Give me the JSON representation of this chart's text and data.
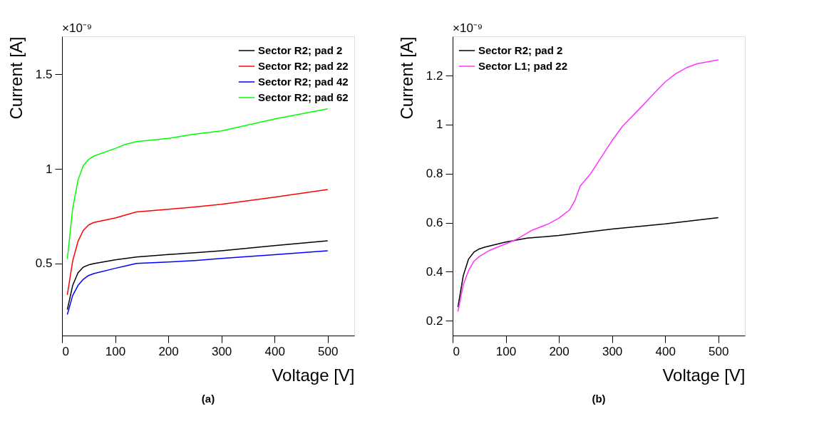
{
  "chart_data": [
    {
      "type": "line",
      "title": "(a)",
      "xlabel": "Voltage [V]",
      "ylabel": "Current [A]",
      "annotations": [
        "×10⁻⁹"
      ],
      "xlim": [
        0,
        550
      ],
      "xticks": [
        0,
        100,
        200,
        300,
        400,
        500
      ],
      "ylim": [
        0.12,
        1.7
      ],
      "yticks": [
        0.5,
        1,
        1.5
      ],
      "grid": false,
      "legend": "top right",
      "marker": "none",
      "line_style": "solid",
      "x": [
        10,
        20,
        30,
        40,
        50,
        60,
        100,
        120,
        140,
        200,
        250,
        300,
        400,
        500
      ],
      "series": [
        {
          "name": "Sector R2; pad  2",
          "color": "#000000",
          "values": [
            0.257,
            0.384,
            0.451,
            0.481,
            0.493,
            0.5,
            0.52,
            0.527,
            0.535,
            0.548,
            0.557,
            0.568,
            0.595,
            0.62
          ]
        },
        {
          "name": "Sector R2; pad 22",
          "color": "#ff0000",
          "values": [
            0.335,
            0.513,
            0.617,
            0.675,
            0.704,
            0.717,
            0.741,
            0.757,
            0.773,
            0.787,
            0.799,
            0.813,
            0.851,
            0.891
          ]
        },
        {
          "name": "Sector R2; pad 42",
          "color": "#0000ff",
          "values": [
            0.231,
            0.331,
            0.384,
            0.417,
            0.437,
            0.447,
            0.475,
            0.488,
            0.501,
            0.508,
            0.516,
            0.527,
            0.547,
            0.568
          ]
        },
        {
          "name": "Sector R2; pad 62",
          "color": "#00ff00",
          "values": [
            0.524,
            0.79,
            0.94,
            1.017,
            1.05,
            1.068,
            1.108,
            1.13,
            1.144,
            1.161,
            1.184,
            1.201,
            1.264,
            1.317
          ]
        }
      ]
    },
    {
      "type": "line",
      "title": "(b)",
      "xlabel": "Voltage [V]",
      "ylabel": "Current [A]",
      "annotations": [
        "×10⁻⁹"
      ],
      "xlim": [
        0,
        550
      ],
      "xticks": [
        0,
        100,
        200,
        300,
        400,
        500
      ],
      "ylim": [
        0.14,
        1.36
      ],
      "yticks": [
        0.2,
        0.4,
        0.6,
        0.8,
        1,
        1.2
      ],
      "grid": false,
      "legend": "top left",
      "marker": "none",
      "line_style": "solid",
      "series": [
        {
          "name": "Sector R2; pad  2",
          "color": "#000000",
          "x": [
            10,
            20,
            30,
            40,
            50,
            60,
            100,
            140,
            200,
            300,
            400,
            500
          ],
          "values": [
            0.256,
            0.384,
            0.452,
            0.48,
            0.493,
            0.5,
            0.521,
            0.537,
            0.548,
            0.574,
            0.595,
            0.621
          ]
        },
        {
          "name": "Sector L1; pad 22",
          "color": "#ff33ff",
          "x": [
            10,
            20,
            30,
            40,
            50,
            70,
            100,
            120,
            150,
            180,
            200,
            220,
            230,
            240,
            260,
            300,
            320,
            360,
            380,
            400,
            420,
            440,
            460,
            500
          ],
          "values": [
            0.238,
            0.347,
            0.405,
            0.443,
            0.462,
            0.488,
            0.514,
            0.532,
            0.57,
            0.595,
            0.619,
            0.652,
            0.69,
            0.749,
            0.801,
            0.935,
            0.994,
            1.083,
            1.13,
            1.174,
            1.208,
            1.232,
            1.248,
            1.264
          ]
        }
      ]
    }
  ]
}
